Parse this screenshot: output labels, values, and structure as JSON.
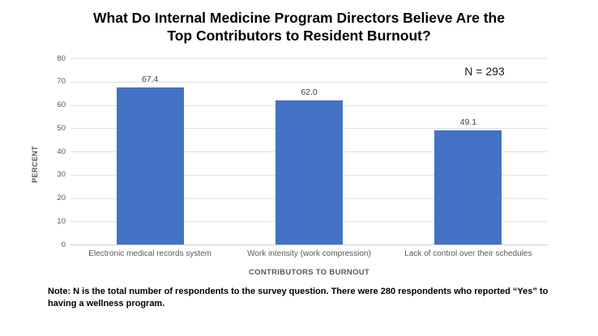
{
  "header": {
    "title_lines": [
      "What Do Internal Medicine Program Directors Believe Are the",
      "Top Contributors to Resident Burnout?"
    ]
  },
  "chart_data": {
    "type": "bar",
    "title": "What Do Internal Medicine Program Directors Believe Are the Top Contributors to Resident Burnout?",
    "categories": [
      "Electronic medical records system",
      "Work intensity (work compression)",
      "Lack of control over their schedules"
    ],
    "values": [
      67.4,
      62.0,
      49.1
    ],
    "value_labels": [
      "67.4",
      "62.0",
      "49.1"
    ],
    "xlabel": "CONTRIBUTORS TO BURNOUT",
    "ylabel": "PERCENT",
    "ylim": [
      0,
      80
    ],
    "yticks": [
      0,
      10,
      20,
      30,
      40,
      50,
      60,
      70,
      80
    ],
    "grid": true,
    "legend": "none",
    "annotation": "N = 293",
    "bar_color": "#4472C4",
    "gridline_color": "#E2E2E2",
    "axis_text_color": "#595959",
    "data_label_color": "#404040"
  },
  "note": {
    "lines": [
      "Note: N is the total number of respondents to the survey question. There were 280 respondents who reported “Yes” to",
      "having a wellness program."
    ]
  }
}
